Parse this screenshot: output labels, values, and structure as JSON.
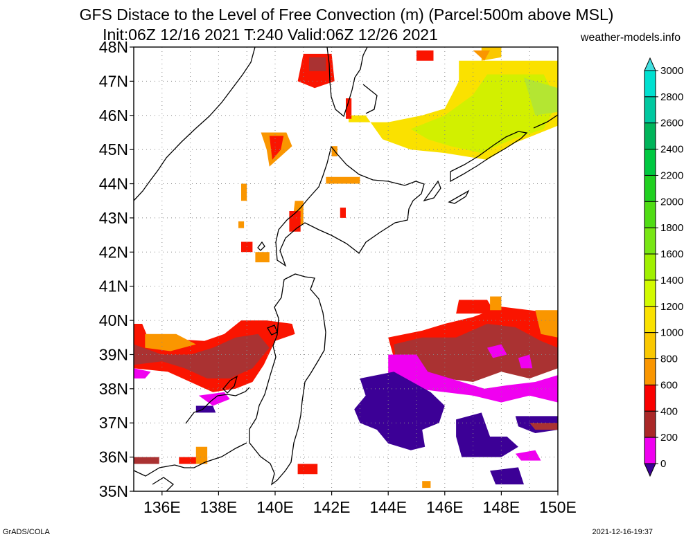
{
  "header": {
    "title_line1": "GFS Distace to the Level of Free Convection (m) (Parcel:500m above MSL)",
    "title_line2": "Init:06Z 12/16 2021 T:240 Valid:06Z 12/26 2021",
    "site": "weather-models.info"
  },
  "footer": {
    "left": "GrADS/COLA",
    "right": "2021-12-16-19:37"
  },
  "map": {
    "lat_labels": [
      "48N",
      "47N",
      "46N",
      "45N",
      "44N",
      "43N",
      "42N",
      "41N",
      "40N",
      "39N",
      "38N",
      "37N",
      "36N",
      "35N"
    ],
    "lon_labels": [
      "136E",
      "138E",
      "140E",
      "142E",
      "144E",
      "146E",
      "148E",
      "150E"
    ],
    "lon_range": [
      135,
      150
    ],
    "lat_range": [
      35,
      48
    ]
  },
  "colorbar": {
    "labels": [
      "3000",
      "2800",
      "2600",
      "2400",
      "2200",
      "2000",
      "1800",
      "1600",
      "1400",
      "1200",
      "1000",
      "800",
      "600",
      "400",
      "200",
      "0"
    ],
    "colors": [
      "#00e0d0",
      "#00c8a0",
      "#00b45a",
      "#00c840",
      "#20d020",
      "#50dc14",
      "#78e614",
      "#a0f000",
      "#d2fa00",
      "#fae100",
      "#fac800",
      "#fa9600",
      "#fa0000",
      "#aa2828",
      "#f000f0",
      "#3c0096"
    ],
    "top_arrow_color": "#40e0e0",
    "bottom_arrow_color": "#3c0096"
  },
  "field_colors": {
    "c0": "#3c0096",
    "c200": "#f000f0",
    "c400": "#aa3232",
    "c600": "#fa1400",
    "c800": "#fa9600",
    "c1000": "#fac800",
    "c1200": "#fae100",
    "c1400": "#d2f000",
    "c1600": "#b4e632"
  }
}
